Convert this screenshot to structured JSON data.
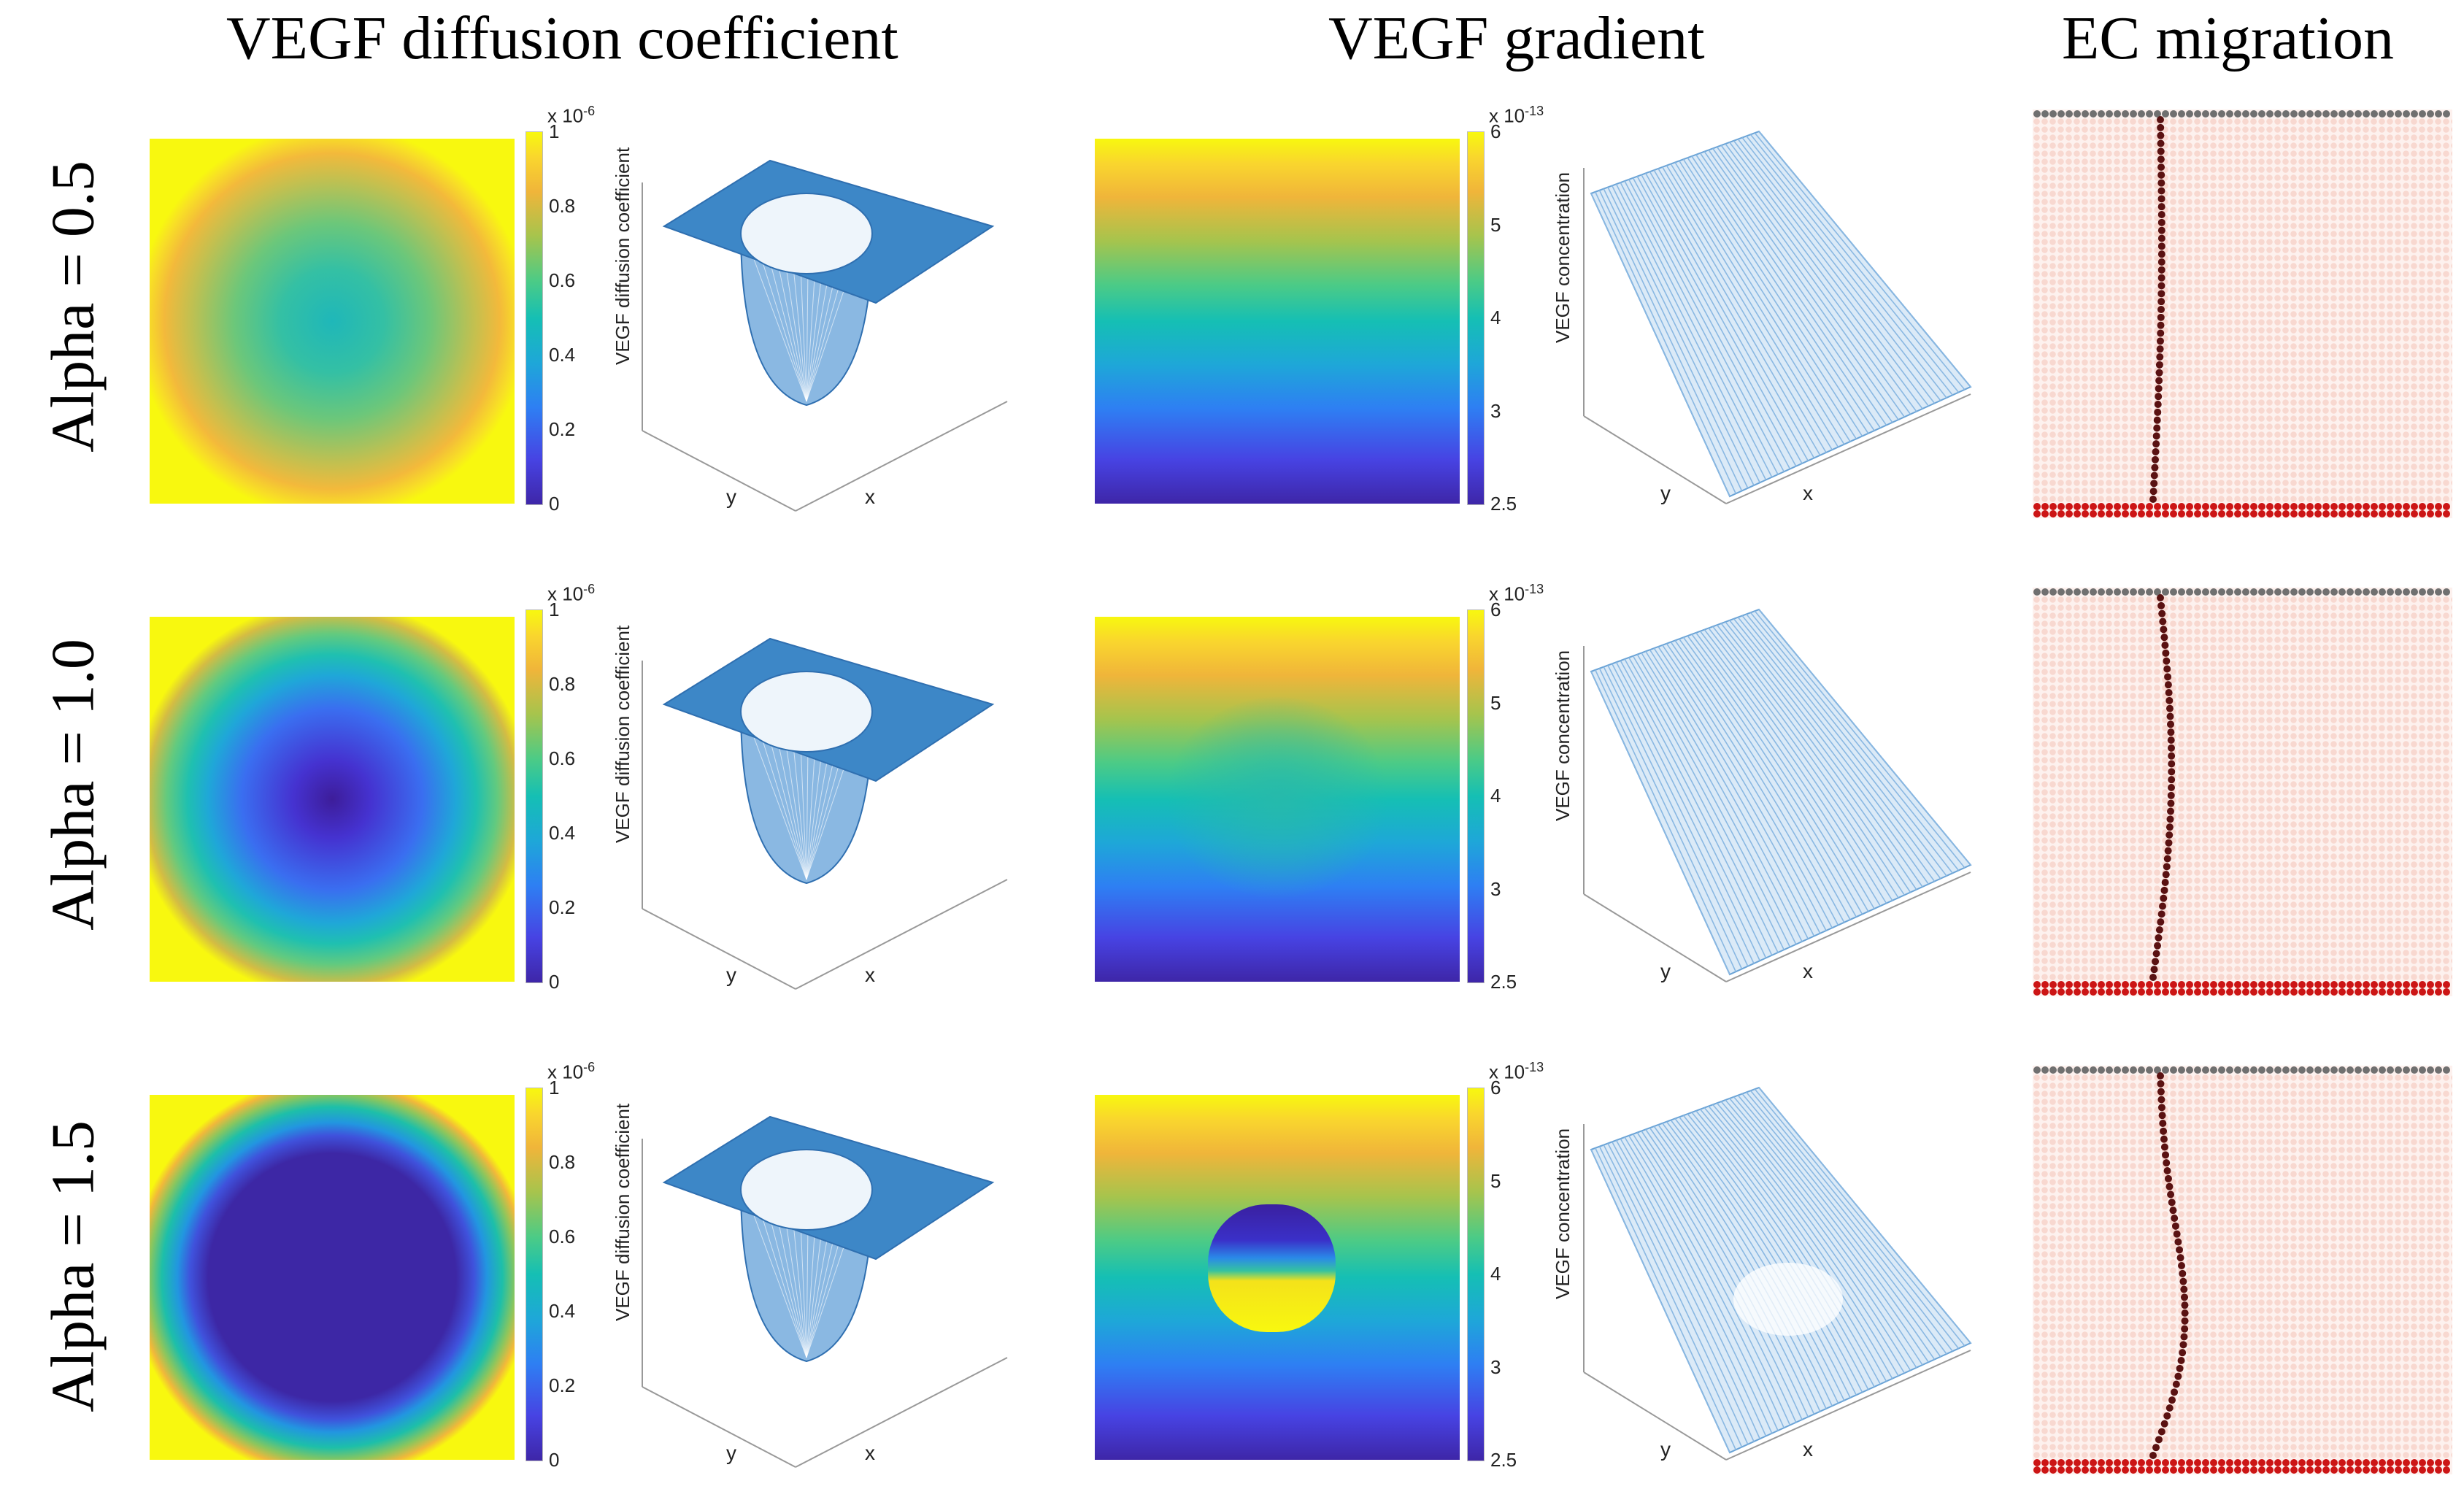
{
  "titles": {
    "col1": "VEGF diffusion coefficient",
    "col2": "VEGF gradient",
    "col3": "EC migration"
  },
  "rows": [
    {
      "label": "Alpha = 0.5",
      "alpha": 0.5
    },
    {
      "label": "Alpha = 1.0",
      "alpha": 1.0
    },
    {
      "label": "Alpha = 1.5",
      "alpha": 1.5
    }
  ],
  "diffusion_colorbar": {
    "exponent_base": "x 10",
    "exponent_power": "-6",
    "ticks": [
      "1",
      "0.8",
      "0.6",
      "0.4",
      "0.2",
      "0"
    ]
  },
  "gradient_colorbar": {
    "exponent_base": "x 10",
    "exponent_power": "-13",
    "ticks": [
      "6",
      "5",
      "4",
      "3",
      "2.5"
    ]
  },
  "surface_labels": {
    "diffusion_z": "VEGF diffusion coefficient",
    "gradient_z": "VEGF concentration",
    "x": "x",
    "y": "y"
  },
  "colors": {
    "yellow": "#f8f80f",
    "dark_blue": "#3d27a5",
    "surface_blue": "#3d87c7",
    "mesh_blue": "#8ab8e2",
    "lattice_pink": "#f8d8d0",
    "cell_red": "#cc1515",
    "cell_dark": "#5a1212",
    "grey_row": "#707070"
  }
}
